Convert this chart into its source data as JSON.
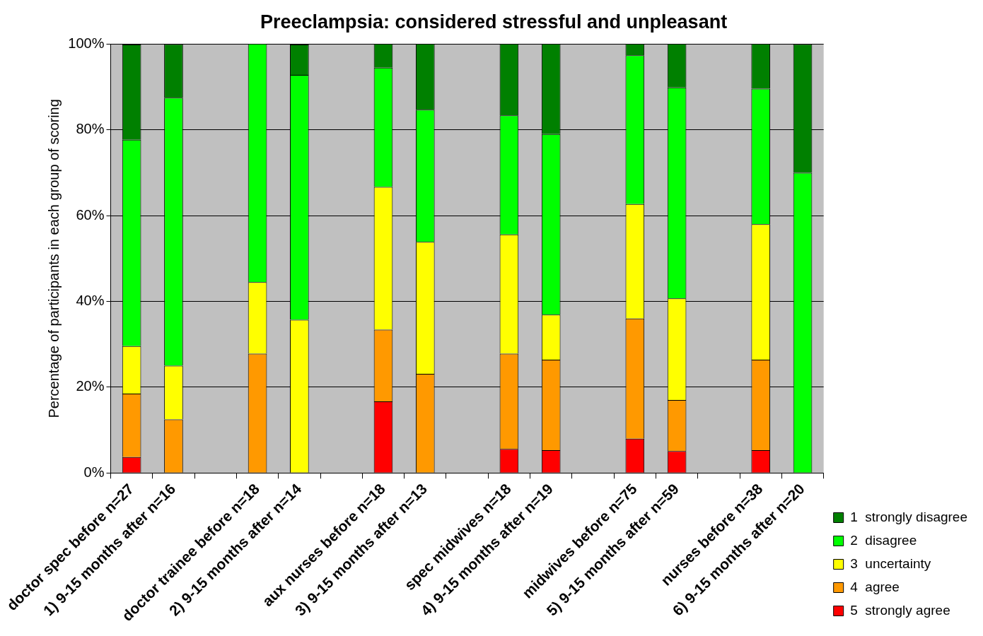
{
  "chart_data": {
    "type": "bar",
    "title": "Preeclampsia: considered stressful and unpleasant",
    "ylabel": "Percentage of participants in each group of scoring",
    "stacked": true,
    "categories": [
      "doctor spec before n=27",
      "1) 9-15 months after n=16",
      null,
      "doctor trainee before n=18",
      "2) 9-15 months after n=14",
      null,
      "aux nurses before n=18",
      "3) 9-15 months after n=13",
      null,
      "spec midwives n=18",
      "4) 9-15 months after n=19",
      null,
      "midwives before n=75",
      "5) 9-15 months after n=59",
      null,
      "nurses before n=38",
      "6) 9-15 months after n=20"
    ],
    "series": [
      {
        "name": "5  strongly agree",
        "color": "#ff0000",
        "values": [
          3.7,
          0,
          null,
          0,
          0,
          null,
          16.7,
          0,
          null,
          5.6,
          5.3,
          null,
          8,
          5.1,
          null,
          5.3,
          0
        ]
      },
      {
        "name": "4  agree",
        "color": "#ff9900",
        "values": [
          14.8,
          12.5,
          null,
          27.8,
          0,
          null,
          16.7,
          23.1,
          null,
          22.2,
          21.1,
          null,
          28,
          11.9,
          null,
          21.1,
          0
        ]
      },
      {
        "name": "3  uncertainty",
        "color": "#ffff00",
        "values": [
          11.1,
          12.5,
          null,
          16.7,
          35.7,
          null,
          33.3,
          30.8,
          null,
          27.8,
          10.5,
          null,
          26.7,
          23.7,
          null,
          31.6,
          0
        ]
      },
      {
        "name": "2  disagree",
        "color": "#00ff00",
        "values": [
          48.1,
          62.5,
          null,
          55.6,
          57.1,
          null,
          27.8,
          30.8,
          null,
          27.8,
          42.1,
          null,
          34.7,
          49.2,
          null,
          31.6,
          70
        ]
      },
      {
        "name": "1  strongly disagree",
        "color": "#008000",
        "values": [
          22.2,
          12.5,
          null,
          0,
          7.1,
          null,
          5.6,
          15.4,
          null,
          16.7,
          21.1,
          null,
          2.7,
          10.2,
          null,
          10.5,
          30
        ]
      }
    ],
    "ylim": [
      0,
      100
    ],
    "yticks": [
      {
        "value": 0,
        "label": "0%"
      },
      {
        "value": 20,
        "label": "20%"
      },
      {
        "value": 40,
        "label": "40%"
      },
      {
        "value": 60,
        "label": "60%"
      },
      {
        "value": 80,
        "label": "80%"
      },
      {
        "value": 100,
        "label": "100%"
      }
    ],
    "grid": "y",
    "legend": "bottom right"
  }
}
